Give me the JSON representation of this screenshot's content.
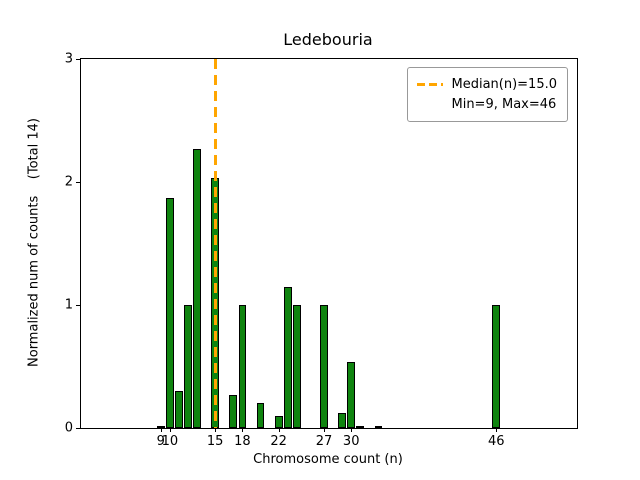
{
  "chart_data": {
    "type": "bar",
    "title": "Ledebouria",
    "xlabel": "Chromosome count (n)",
    "ylabel": "Normalized num of counts    (Total 14)",
    "xlim": [
      0.2,
      54.9
    ],
    "ylim": [
      0,
      3
    ],
    "xticks": [
      9,
      10,
      15,
      18,
      22,
      27,
      30,
      46
    ],
    "yticks": [
      0,
      1,
      2,
      3
    ],
    "bar_width": 0.85,
    "bar_color": "#0f840f",
    "bar_edge_color": "#000000",
    "bars": [
      {
        "x": 9,
        "h": 0.02
      },
      {
        "x": 10,
        "h": 1.87
      },
      {
        "x": 11,
        "h": 0.3
      },
      {
        "x": 12,
        "h": 1.0
      },
      {
        "x": 13,
        "h": 2.27
      },
      {
        "x": 15,
        "h": 2.03
      },
      {
        "x": 17,
        "h": 0.27
      },
      {
        "x": 18,
        "h": 1.0
      },
      {
        "x": 20,
        "h": 0.2
      },
      {
        "x": 22,
        "h": 0.1
      },
      {
        "x": 23,
        "h": 1.15
      },
      {
        "x": 24,
        "h": 1.0
      },
      {
        "x": 27,
        "h": 1.0
      },
      {
        "x": 29,
        "h": 0.12
      },
      {
        "x": 30,
        "h": 0.54
      },
      {
        "x": 31,
        "h": 0.02
      },
      {
        "x": 33,
        "h": 0.02
      },
      {
        "x": 46,
        "h": 1.0
      }
    ],
    "median_line": {
      "x": 15.0,
      "color": "#ffa500",
      "style": "dashed"
    },
    "legend": {
      "position": "upper right",
      "entries": [
        "Median(n)=15.0",
        "Min=9, Max=46"
      ]
    }
  }
}
